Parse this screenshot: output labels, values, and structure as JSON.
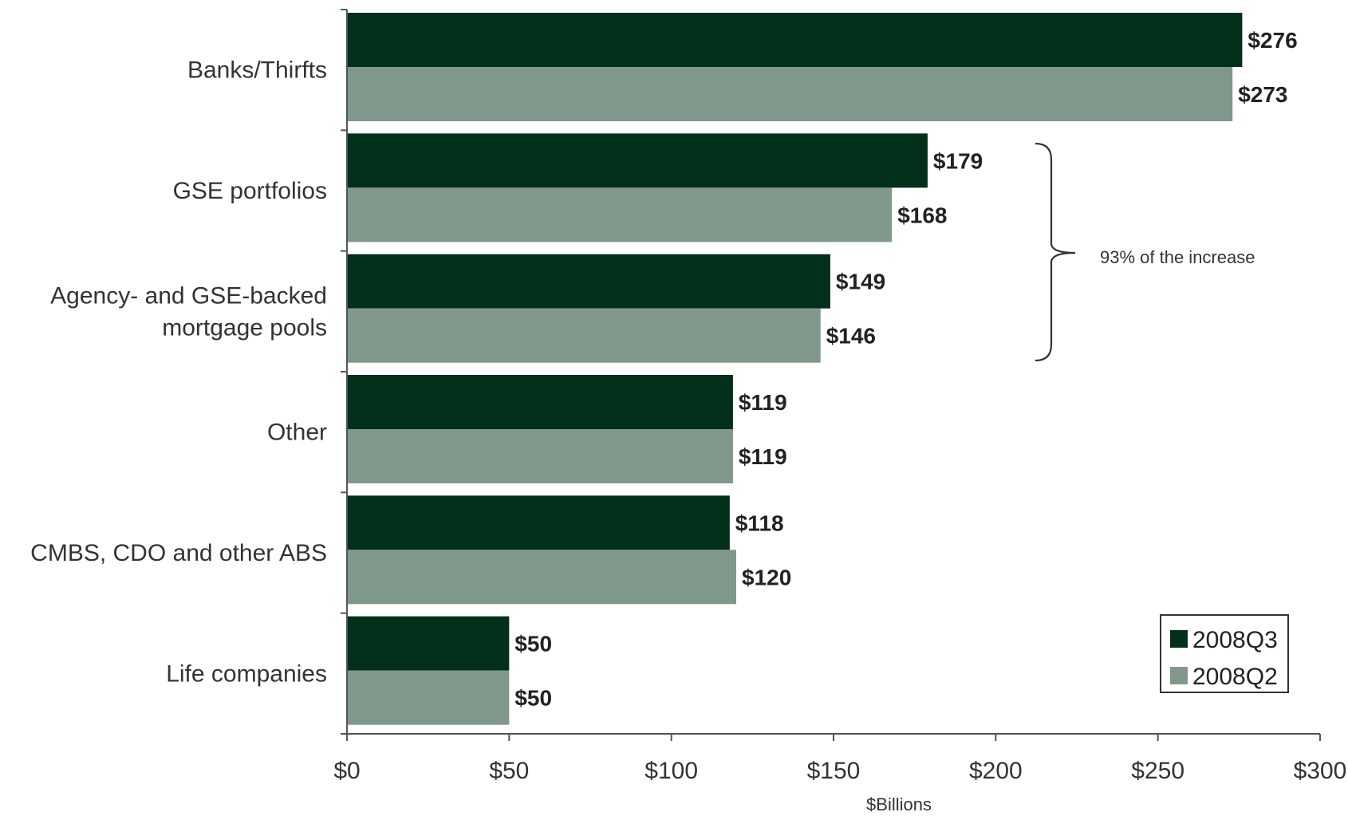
{
  "chart_data": {
    "type": "bar",
    "orientation": "horizontal",
    "categories": [
      "Banks/Thirfts",
      [
        "Agency- and GSE-backed",
        "mortgage pools"
      ],
      "GSE portfolios",
      "Other",
      "CMBS, CDO and other ABS",
      "Life companies"
    ],
    "category_order": [
      "Banks/Thirfts",
      "GSE portfolios",
      "Agency- and GSE-backed mortgage pools",
      "Other",
      "CMBS, CDO and other ABS",
      "Life companies"
    ],
    "category_labels": [
      [
        "Banks/Thirfts"
      ],
      [
        "GSE portfolios"
      ],
      [
        "Agency- and GSE-backed",
        "mortgage pools"
      ],
      [
        "Other"
      ],
      [
        "CMBS, CDO and other ABS"
      ],
      [
        "Life companies"
      ]
    ],
    "series": [
      {
        "name": "2008Q3",
        "color": "#03301a",
        "values": [
          276,
          179,
          149,
          119,
          118,
          50
        ],
        "labels": [
          "$276",
          "$179",
          "$149",
          "$119",
          "$118",
          "$50"
        ]
      },
      {
        "name": "2008Q2",
        "color": "#7f988b",
        "values": [
          273,
          168,
          146,
          119,
          120,
          50
        ],
        "labels": [
          "$273",
          "$168",
          "$146",
          "$119",
          "$120",
          "$50"
        ]
      }
    ],
    "xlim": [
      0,
      300
    ],
    "xticks": [
      0,
      50,
      100,
      150,
      200,
      250,
      300
    ],
    "xtick_labels": [
      "$0",
      "$50",
      "$100",
      "$150",
      "$200",
      "$250",
      "$300"
    ],
    "xlabel": "$Billions",
    "ylabel": "",
    "title": "",
    "grid": false,
    "legend_position": "bottom-right",
    "annotation": {
      "text": "93% of the increase",
      "applies_to": [
        "GSE portfolios",
        "Agency- and GSE-backed mortgage pools"
      ]
    }
  }
}
